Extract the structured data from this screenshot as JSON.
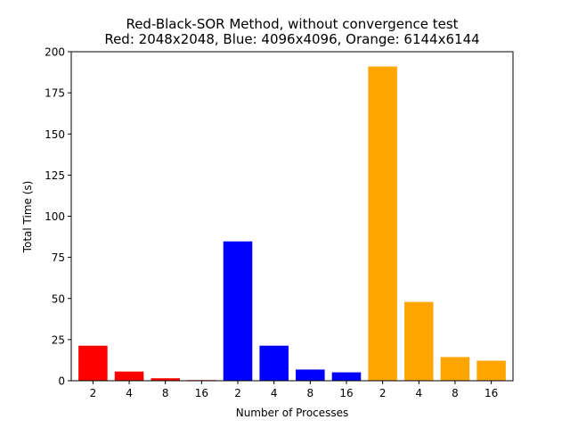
{
  "chart_data": {
    "type": "bar",
    "title": "Red-Black-SOR Method, without convergence test",
    "subtitle": "Red: 2048x2048, Blue: 4096x4096, Orange: 6144x6144",
    "xlabel": "Number of Processes",
    "ylabel": "Total Time (s)",
    "ylim": [
      0,
      200
    ],
    "yticks": [
      0,
      25,
      50,
      75,
      100,
      125,
      150,
      175,
      200
    ],
    "grid": false,
    "categories": [
      "2",
      "4",
      "8",
      "16",
      "2",
      "4",
      "8",
      "16",
      "2",
      "4",
      "8",
      "16"
    ],
    "values": [
      21.3,
      5.6,
      1.5,
      0.4,
      84.7,
      21.3,
      6.8,
      5.1,
      191.0,
      47.9,
      14.4,
      12.2
    ],
    "colors": [
      "#ff0000",
      "#ff0000",
      "#ff0000",
      "#ff0000",
      "#0000ff",
      "#0000ff",
      "#0000ff",
      "#0000ff",
      "#ffa500",
      "#ffa500",
      "#ffa500",
      "#ffa500"
    ]
  }
}
